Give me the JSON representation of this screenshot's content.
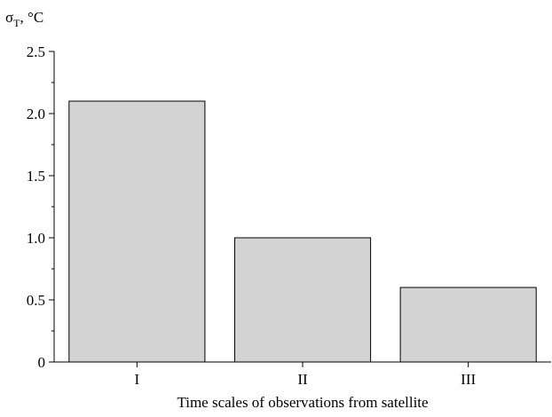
{
  "chart_data": {
    "type": "bar",
    "categories": [
      "I",
      "II",
      "III"
    ],
    "values": [
      2.1,
      1.0,
      0.6
    ],
    "xlabel": "Time scales of observations from satellite",
    "ylabel": {
      "symbol": "σ",
      "subscript": "T",
      "unit": ", °C"
    },
    "ylim": [
      0,
      2.5
    ],
    "yticks": [
      0,
      0.5,
      1.0,
      1.5,
      2.0,
      2.5
    ],
    "ytick_labels": [
      "0",
      "0.5",
      "1.0",
      "1.5",
      "2.0",
      "2.5"
    ],
    "grid": false,
    "bar_color": "#d3d3d3"
  }
}
